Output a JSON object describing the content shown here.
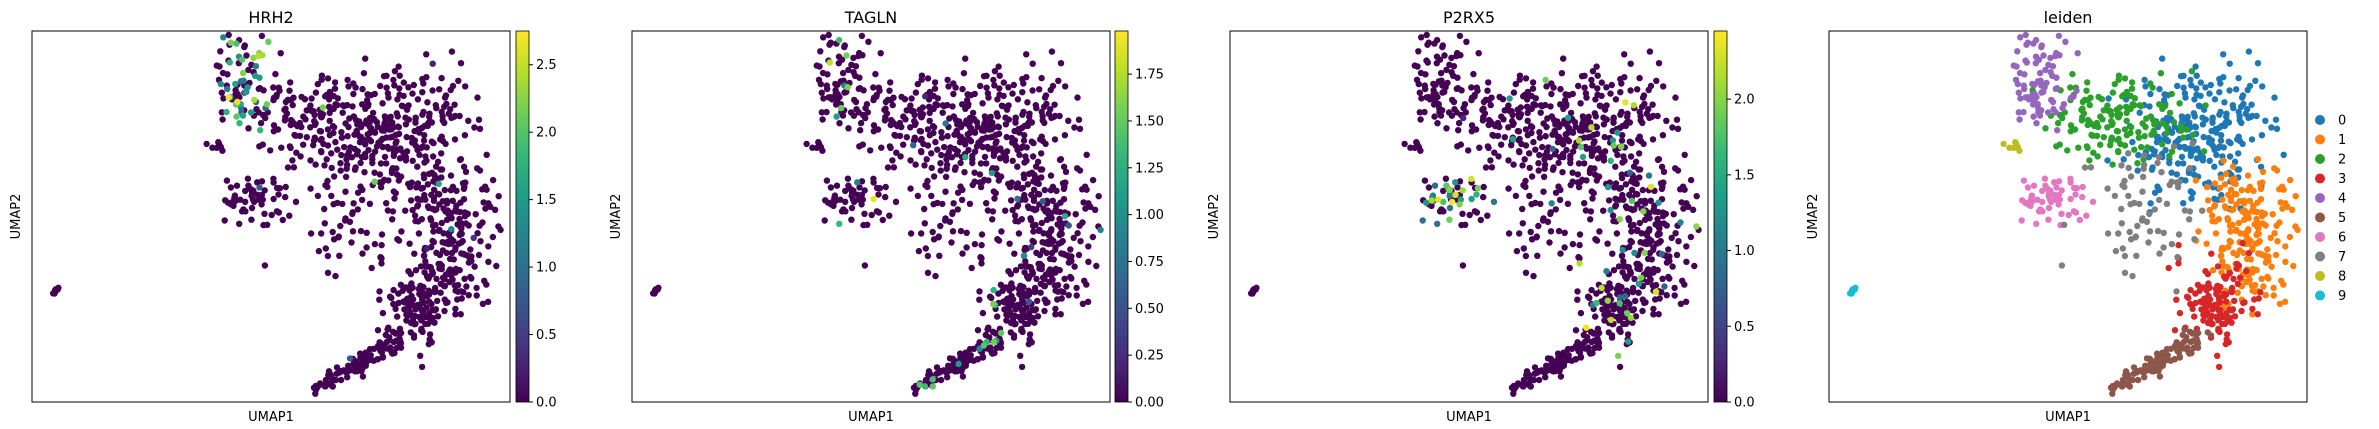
{
  "figure": {
    "colormap_stops": [
      "#440154",
      "#482878",
      "#3e4989",
      "#31688e",
      "#26828e",
      "#1f9e89",
      "#35b779",
      "#6ece58",
      "#b5de2b",
      "#fde725"
    ]
  },
  "chart_data": [
    {
      "type": "scatter",
      "title": "HRH2",
      "xlabel": "UMAP1",
      "ylabel": "UMAP2",
      "color_scale": {
        "colormap": "viridis",
        "min": 0.0,
        "max": 2.75,
        "ticks": [
          0.0,
          0.5,
          1.0,
          1.5,
          2.0,
          2.5
        ],
        "tick_labels": [
          "0.0",
          "0.5",
          "1.0",
          "1.5",
          "2.0",
          "2.5"
        ]
      },
      "highlighted_region": "cluster 4 (upper-left lobe)",
      "expression_profile": {
        "high_clusters": [
          "4"
        ],
        "sparse_hotspots": []
      }
    },
    {
      "type": "scatter",
      "title": "TAGLN",
      "xlabel": "UMAP1",
      "ylabel": "UMAP2",
      "color_scale": {
        "colormap": "viridis",
        "min": 0.0,
        "max": 1.98,
        "ticks": [
          0.0,
          0.25,
          0.5,
          0.75,
          1.0,
          1.25,
          1.5,
          1.75
        ],
        "tick_labels": [
          "0.00",
          "0.25",
          "0.50",
          "0.75",
          "1.00",
          "1.25",
          "1.50",
          "1.75"
        ]
      },
      "expression_profile": {
        "high_clusters": [],
        "sparse_hotspots": [
          "4",
          "6",
          "9",
          "5"
        ]
      }
    },
    {
      "type": "scatter",
      "title": "P2RX5",
      "xlabel": "UMAP1",
      "ylabel": "UMAP2",
      "color_scale": {
        "colormap": "viridis",
        "min": 0.0,
        "max": 2.45,
        "ticks": [
          0.0,
          0.5,
          1.0,
          1.5,
          2.0
        ],
        "tick_labels": [
          "0.0",
          "0.5",
          "1.0",
          "1.5",
          "2.0"
        ]
      },
      "expression_profile": {
        "high_clusters": [
          "6"
        ],
        "sparse_hotspots": [
          "1",
          "3",
          "0"
        ]
      }
    },
    {
      "type": "scatter",
      "title": "leiden",
      "xlabel": "UMAP1",
      "ylabel": "UMAP2",
      "legend_position": "right",
      "categories": [
        "0",
        "1",
        "2",
        "3",
        "4",
        "5",
        "6",
        "7",
        "8",
        "9"
      ],
      "category_colors": [
        "#1f77b4",
        "#ff7f0e",
        "#2ca02c",
        "#d62728",
        "#9467bd",
        "#8c564b",
        "#e377c2",
        "#7f7f7f",
        "#bcbd22",
        "#17becf"
      ]
    }
  ]
}
